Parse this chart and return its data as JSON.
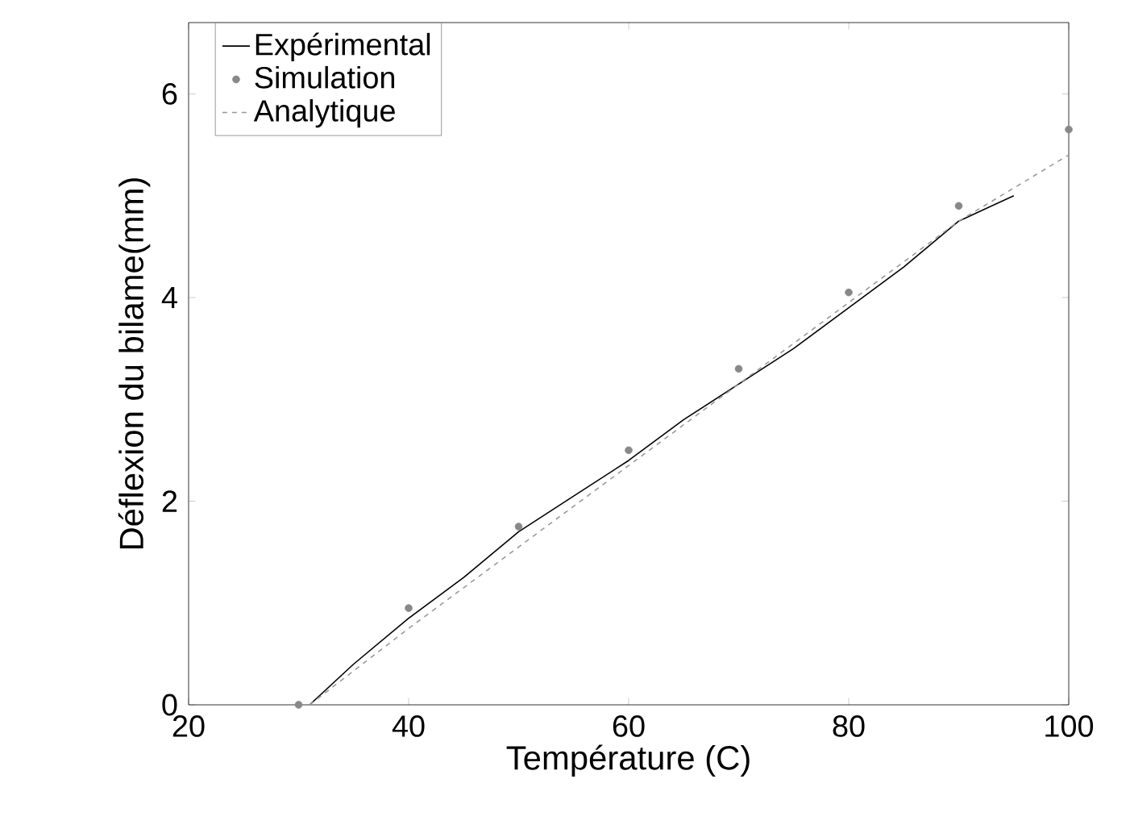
{
  "chart_data": {
    "type": "line",
    "xlabel": "Température (C)",
    "ylabel": "Déflexion du bilame(mm)",
    "xlim": [
      20,
      100
    ],
    "ylim": [
      0,
      6.7
    ],
    "xticks": [
      20,
      40,
      60,
      80,
      100
    ],
    "yticks": [
      0,
      2,
      4,
      6
    ],
    "legend": "top left",
    "grid": false,
    "series": [
      {
        "name": "Expérimental",
        "color": "#000000",
        "line_style": "solid",
        "marker": "none",
        "x": [
          31,
          35,
          40,
          45,
          50,
          55,
          60,
          65,
          70,
          75,
          80,
          85,
          90,
          95
        ],
        "values": [
          0,
          0.4,
          0.85,
          1.25,
          1.7,
          2.05,
          2.4,
          2.8,
          3.15,
          3.5,
          3.9,
          4.3,
          4.75,
          5.0
        ]
      },
      {
        "name": "Simulation",
        "color": "#888888",
        "type": "scatter",
        "marker": "circle",
        "x": [
          30,
          40,
          50,
          60,
          70,
          80,
          90,
          100
        ],
        "values": [
          0,
          0.95,
          1.75,
          2.5,
          3.3,
          4.05,
          4.9,
          5.65
        ]
      },
      {
        "name": "Analytique",
        "color": "#999999",
        "line_style": "dashed",
        "marker": "none",
        "x": [
          31,
          40,
          50,
          60,
          70,
          80,
          90,
          100
        ],
        "values": [
          0,
          0.75,
          1.55,
          2.35,
          3.15,
          3.95,
          4.75,
          5.4
        ]
      }
    ]
  }
}
